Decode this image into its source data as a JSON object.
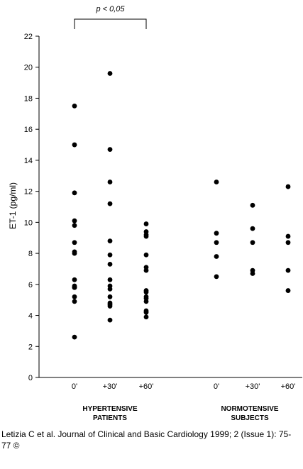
{
  "chart_data": {
    "type": "scatter",
    "ylabel": "ET-1 (pg/ml)",
    "ylim": [
      0,
      22
    ],
    "yticks": [
      0,
      2,
      4,
      6,
      8,
      10,
      12,
      14,
      16,
      18,
      20,
      22
    ],
    "grid": false,
    "groups": [
      {
        "name": "HYPERTENSIVE",
        "name_line2": "PATIENTS"
      },
      {
        "name": "NORMOTENSIVE",
        "name_line2": "SUBJECTS"
      }
    ],
    "categories": [
      "0'",
      "+30'",
      "+60'",
      "0'",
      "+30'",
      "+60'"
    ],
    "series": [
      {
        "group": 0,
        "category": 0,
        "values": [
          17.5,
          15.0,
          11.9,
          10.1,
          9.8,
          8.7,
          8.1,
          8.0,
          6.3,
          5.9,
          5.8,
          5.8,
          5.2,
          4.9,
          2.6
        ]
      },
      {
        "group": 0,
        "category": 1,
        "values": [
          19.6,
          14.7,
          12.6,
          11.2,
          8.8,
          7.9,
          7.3,
          6.3,
          5.9,
          5.7,
          5.2,
          4.8,
          4.7,
          4.6,
          3.7
        ]
      },
      {
        "group": 0,
        "category": 2,
        "values": [
          9.9,
          9.4,
          9.2,
          9.1,
          7.9,
          7.1,
          6.9,
          5.6,
          5.5,
          5.2,
          5.1,
          4.9,
          4.3,
          4.2,
          3.9
        ]
      },
      {
        "group": 1,
        "category": 3,
        "values": [
          12.6,
          9.3,
          8.7,
          7.8,
          6.5
        ]
      },
      {
        "group": 1,
        "category": 4,
        "values": [
          11.1,
          9.6,
          8.7,
          6.9,
          6.7
        ]
      },
      {
        "group": 1,
        "category": 5,
        "values": [
          12.3,
          9.1,
          8.7,
          6.9,
          5.6
        ]
      }
    ],
    "annotation": {
      "text": "p < 0,05",
      "from_category": 0,
      "to_category": 2
    }
  },
  "caption": "Letizia C et al. Journal of Clinical and Basic Cardiology 1999; 2 (Issue 1): 75-77 ©"
}
